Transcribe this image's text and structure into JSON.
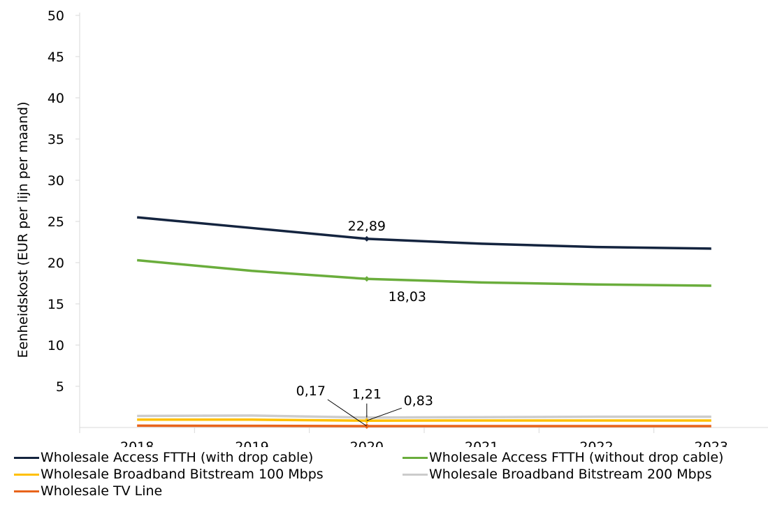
{
  "chart_data": {
    "type": "line",
    "title": "",
    "xlabel": "",
    "ylabel": "Eenheidskost (EUR per lijn per maand)",
    "categories": [
      "2018",
      "2019",
      "2020",
      "2021",
      "2022",
      "2023"
    ],
    "yticks": [
      "5",
      "10",
      "15",
      "20",
      "25",
      "30",
      "35",
      "40",
      "45",
      "50"
    ],
    "ylim": [
      0,
      50
    ],
    "grid": false,
    "legend_position": "bottom",
    "series": [
      {
        "name": "Wholesale Access FTTH (with drop cable)",
        "color": "#14243f",
        "values": [
          25.5,
          24.2,
          22.89,
          22.3,
          21.9,
          21.7
        ]
      },
      {
        "name": "Wholesale Access FTTH (without drop cable)",
        "color": "#6aad3c",
        "values": [
          20.3,
          19.0,
          18.03,
          17.6,
          17.35,
          17.2
        ]
      },
      {
        "name": "Wholesale Broadband Bitstream 100 Mbps",
        "color": "#ffc000",
        "values": [
          0.95,
          0.95,
          0.83,
          0.85,
          0.85,
          0.85
        ]
      },
      {
        "name": "Wholesale Broadband Bitstream 200 Mbps",
        "color": "#cccccc",
        "values": [
          1.4,
          1.45,
          1.21,
          1.25,
          1.3,
          1.3
        ]
      },
      {
        "name": "Wholesale TV Line",
        "color": "#e8641b",
        "values": [
          0.22,
          0.2,
          0.17,
          0.17,
          0.17,
          0.17
        ]
      }
    ],
    "annotations": [
      {
        "text": "22,89",
        "series": 0,
        "x": "2020",
        "y": 22.89
      },
      {
        "text": "18,03",
        "series": 1,
        "x": "2020",
        "y": 18.03
      },
      {
        "text": "0,17",
        "series": 4,
        "x": "2020",
        "y": 0.17
      },
      {
        "text": "1,21",
        "series": 3,
        "x": "2020",
        "y": 1.21
      },
      {
        "text": "0,83",
        "series": 2,
        "x": "2020",
        "y": 0.83
      }
    ]
  }
}
